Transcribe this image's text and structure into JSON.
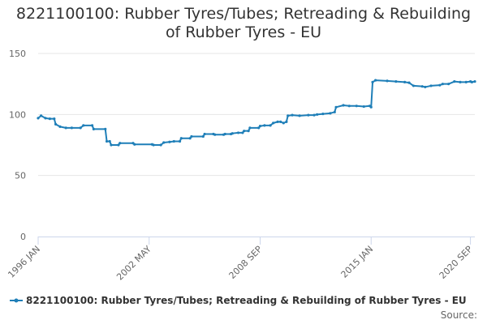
{
  "chart_data": {
    "type": "line",
    "title": "8221100100: Rubber Tyres/Tubes; Retreading & Rebuilding of Rubber Tyres - EU",
    "title_lines": [
      "8221100100: Rubber Tyres/Tubes; Retreading & Rebuilding",
      "of Rubber Tyres - EU"
    ],
    "xlabel": "",
    "ylabel": "",
    "ylim": [
      0,
      150
    ],
    "xlim": [
      "1996-01",
      "2020-12"
    ],
    "y_ticks": [
      "0",
      "50",
      "100",
      "150"
    ],
    "x_ticks": [
      {
        "date": "1996-01",
        "label": "1996 JAN"
      },
      {
        "date": "2002-05",
        "label": "2002 MAY"
      },
      {
        "date": "2008-09",
        "label": "2008 SEP"
      },
      {
        "date": "2015-01",
        "label": "2015 JAN"
      },
      {
        "date": "2020-09",
        "label": "2020 SEP"
      }
    ],
    "grid": true,
    "legend_position": "bottom",
    "series": [
      {
        "name": "8221100100: Rubber Tyres/Tubes; Retreading & Rebuilding of Rubber Tyres - EU",
        "color": "#1f7fb8",
        "points": [
          [
            "1996-01",
            97
          ],
          [
            "1996-03",
            99
          ],
          [
            "1996-06",
            97
          ],
          [
            "1996-09",
            96.5
          ],
          [
            "1996-12",
            96.5
          ],
          [
            "1997-01",
            92
          ],
          [
            "1997-04",
            90
          ],
          [
            "1997-08",
            89
          ],
          [
            "1997-12",
            89
          ],
          [
            "1998-06",
            89
          ],
          [
            "1998-08",
            91
          ],
          [
            "1999-02",
            91
          ],
          [
            "1999-03",
            88
          ],
          [
            "1999-11",
            88
          ],
          [
            "1999-12",
            78
          ],
          [
            "2000-02",
            78
          ],
          [
            "2000-03",
            75
          ],
          [
            "2000-08",
            75
          ],
          [
            "2000-09",
            76.5
          ],
          [
            "2001-06",
            76.5
          ],
          [
            "2001-07",
            75.5
          ],
          [
            "2002-07",
            75.5
          ],
          [
            "2002-08",
            75
          ],
          [
            "2003-01",
            75
          ],
          [
            "2003-03",
            77
          ],
          [
            "2003-07",
            77.5
          ],
          [
            "2003-10",
            78
          ],
          [
            "2004-02",
            78
          ],
          [
            "2004-03",
            80.5
          ],
          [
            "2004-09",
            80.5
          ],
          [
            "2004-10",
            82
          ],
          [
            "2005-06",
            82
          ],
          [
            "2005-07",
            84
          ],
          [
            "2006-01",
            84
          ],
          [
            "2006-02",
            83.5
          ],
          [
            "2006-08",
            83.5
          ],
          [
            "2006-09",
            84
          ],
          [
            "2007-01",
            84
          ],
          [
            "2007-02",
            84.5
          ],
          [
            "2007-06",
            85
          ],
          [
            "2007-09",
            85
          ],
          [
            "2007-10",
            86.5
          ],
          [
            "2008-01",
            86.5
          ],
          [
            "2008-02",
            89
          ],
          [
            "2008-08",
            89
          ],
          [
            "2008-09",
            90.5
          ],
          [
            "2008-12",
            91
          ],
          [
            "2009-04",
            91
          ],
          [
            "2009-06",
            93
          ],
          [
            "2009-09",
            94
          ],
          [
            "2009-11",
            94
          ],
          [
            "2010-01",
            93
          ],
          [
            "2010-03",
            94
          ],
          [
            "2010-04",
            99
          ],
          [
            "2010-07",
            99.5
          ],
          [
            "2010-12",
            99
          ],
          [
            "2011-06",
            99.5
          ],
          [
            "2011-10",
            99.5
          ],
          [
            "2011-12",
            100
          ],
          [
            "2012-04",
            100.5
          ],
          [
            "2012-09",
            101
          ],
          [
            "2012-12",
            102
          ],
          [
            "2013-01",
            106
          ],
          [
            "2013-06",
            107.5
          ],
          [
            "2013-10",
            107
          ],
          [
            "2014-03",
            107
          ],
          [
            "2014-08",
            106.5
          ],
          [
            "2014-12",
            107
          ],
          [
            "2015-01",
            106
          ],
          [
            "2015-02",
            126.5
          ],
          [
            "2015-04",
            128
          ],
          [
            "2015-12",
            127.5
          ],
          [
            "2016-06",
            127
          ],
          [
            "2016-12",
            126.5
          ],
          [
            "2017-03",
            126
          ],
          [
            "2017-06",
            123.5
          ],
          [
            "2017-12",
            123
          ],
          [
            "2018-02",
            122.5
          ],
          [
            "2018-06",
            123.5
          ],
          [
            "2018-12",
            124
          ],
          [
            "2019-02",
            125
          ],
          [
            "2019-06",
            125
          ],
          [
            "2019-10",
            127
          ],
          [
            "2020-02",
            126.5
          ],
          [
            "2020-06",
            126.5
          ],
          [
            "2020-09",
            127
          ],
          [
            "2020-10",
            126.5
          ],
          [
            "2020-12",
            127
          ]
        ]
      }
    ]
  },
  "legend": {
    "label": "8221100100: Rubber Tyres/Tubes; Retreading & Rebuilding of Rubber Tyres - EU"
  },
  "credits": {
    "text": "Source:"
  },
  "colors": {
    "series": "#1f7fb8",
    "grid": "#e6e6e6",
    "axis": "#ccd6eb",
    "text": "#333333",
    "muted": "#666666"
  }
}
